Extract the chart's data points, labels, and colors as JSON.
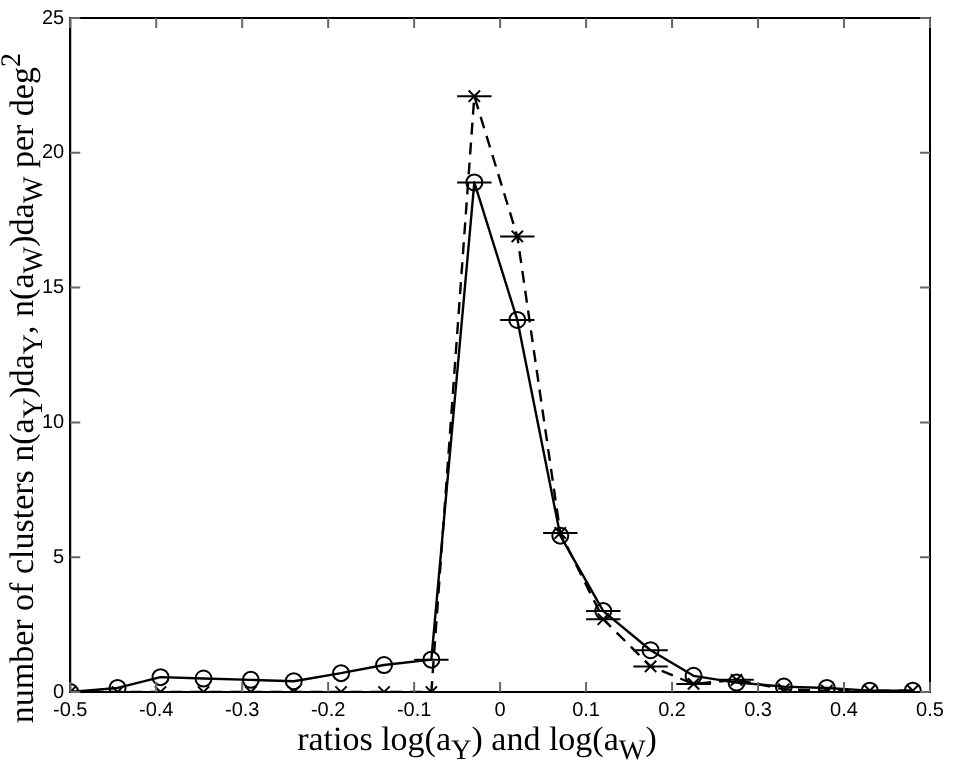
{
  "chart_data": {
    "type": "line",
    "xlabel": "ratios log(a$_{Y}$) and log(a$_{W}$)",
    "ylabel": "number of clusters n(a$_{Y}$)da$_{Y}$, n(a$_{W}$)da$_{W}$ per deg$^{2}$",
    "xlim": [
      -0.5,
      0.5
    ],
    "xticks": [
      -0.5,
      -0.4,
      -0.3,
      -0.2,
      -0.1,
      0,
      0.1,
      0.2,
      0.3,
      0.4,
      0.5
    ],
    "ylim": [
      0,
      25
    ],
    "yticks": [
      0,
      5,
      10,
      15,
      20,
      25
    ],
    "grid": false,
    "legend": false,
    "x": [
      -0.5,
      -0.445,
      -0.395,
      -0.345,
      -0.29,
      -0.24,
      -0.185,
      -0.135,
      -0.08,
      -0.03,
      0.02,
      0.07,
      0.12,
      0.175,
      0.225,
      0.275,
      0.33,
      0.38,
      0.43,
      0.48
    ],
    "series": [
      {
        "color": "#000000",
        "marker": "circle",
        "line_style": "solid",
        "values": [
          0,
          0.15,
          0.55,
          0.5,
          0.45,
          0.4,
          0.7,
          1.0,
          1.2,
          18.9,
          13.8,
          5.8,
          3.0,
          1.55,
          0.6,
          0.35,
          0.2,
          0.15,
          0.05,
          0.05
        ],
        "xerrors": [
          null,
          null,
          null,
          null,
          null,
          null,
          null,
          null,
          0.02,
          0.02,
          0.02,
          null,
          0.02,
          0.02,
          null,
          null,
          null,
          null,
          null,
          null
        ]
      },
      {
        "color": "#000000",
        "marker": "cross",
        "line_style": "dashed",
        "values": [
          0,
          0,
          0,
          0,
          0,
          0,
          0,
          0,
          0,
          22.1,
          16.9,
          5.9,
          2.7,
          0.95,
          0.3,
          0.45,
          0.1,
          0.05,
          0.05,
          0.05
        ],
        "xerrors": [
          null,
          null,
          null,
          null,
          null,
          null,
          null,
          null,
          null,
          0.02,
          0.02,
          0.02,
          0.02,
          0.02,
          0.02,
          0.02,
          null,
          null,
          null,
          null
        ]
      }
    ]
  }
}
